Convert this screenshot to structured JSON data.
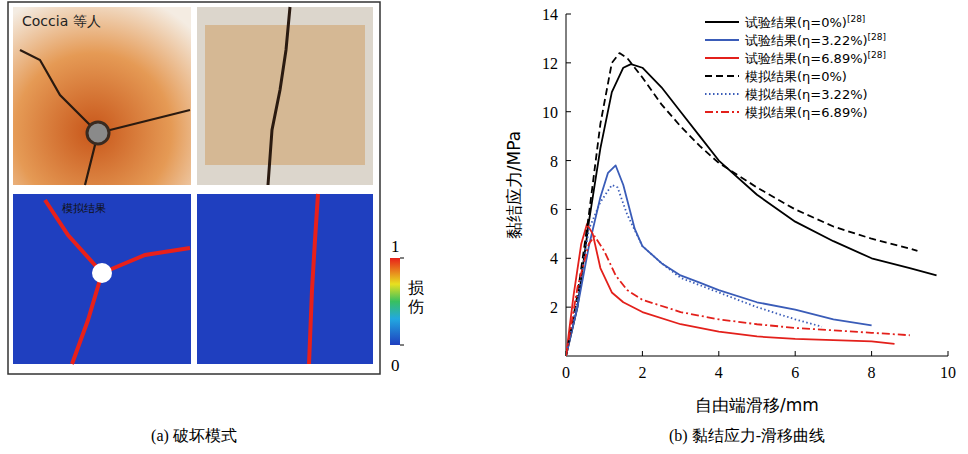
{
  "failure_modes": {
    "caption": "(a) 破坏模式",
    "photo_label": "Coccia 等人",
    "sim_label": "模拟结果",
    "colorbar": {
      "label": "损伤",
      "range": [
        0,
        1
      ],
      "ticks": [
        0,
        1
      ]
    }
  },
  "chart_data": {
    "type": "line",
    "title": "(b) 黏结应力-滑移曲线",
    "x_label": "自由端滑移/mm",
    "y_label": "黏结应力/MPa",
    "xlim": [
      0,
      10
    ],
    "ylim": [
      0,
      14
    ],
    "xticks": [
      0,
      2,
      4,
      6,
      8,
      10
    ],
    "yticks": [
      2,
      4,
      6,
      8,
      10,
      12,
      14
    ],
    "grid": false,
    "legend": "top-right",
    "series": [
      {
        "name": "试验结果(η=0%)[28]",
        "color": "#000000",
        "line_style": "solid",
        "x": [
          0,
          0.3,
          0.6,
          0.9,
          1.2,
          1.5,
          1.7,
          2,
          2.5,
          3,
          3.5,
          4,
          5,
          6,
          7,
          8,
          9,
          9.7
        ],
        "values": [
          0,
          2,
          5.5,
          8.5,
          10.8,
          11.8,
          11.95,
          11.8,
          11,
          10,
          9,
          8,
          6.6,
          5.5,
          4.7,
          4,
          3.6,
          3.3
        ]
      },
      {
        "name": "试验结果(η=3.22%)[28]",
        "color": "#3a5cb8",
        "line_style": "solid",
        "x": [
          0,
          0.3,
          0.6,
          0.9,
          1.1,
          1.3,
          1.5,
          1.8,
          2,
          2.5,
          3,
          3.5,
          4,
          5,
          6,
          7,
          8
        ],
        "values": [
          0,
          2,
          4.5,
          6.5,
          7.5,
          7.8,
          7,
          5.2,
          4.5,
          3.8,
          3.3,
          3,
          2.7,
          2.2,
          1.9,
          1.5,
          1.25
        ]
      },
      {
        "name": "试验结果(η=6.89%)[28]",
        "color": "#e3201b",
        "line_style": "solid",
        "x": [
          0,
          0.2,
          0.4,
          0.55,
          0.7,
          0.9,
          1.2,
          1.5,
          2,
          3,
          4,
          5,
          6,
          7,
          8,
          8.6
        ],
        "values": [
          0,
          2.5,
          4.6,
          5.4,
          5,
          3.6,
          2.6,
          2.2,
          1.8,
          1.3,
          1,
          0.8,
          0.7,
          0.65,
          0.6,
          0.5
        ]
      },
      {
        "name": "模拟结果(η=0%)",
        "color": "#000000",
        "line_style": "dashed",
        "x": [
          0,
          0.3,
          0.6,
          0.9,
          1.2,
          1.4,
          1.6,
          2,
          2.5,
          3,
          3.5,
          4,
          5,
          6,
          7,
          8,
          9,
          9.2
        ],
        "values": [
          0,
          2.5,
          5.8,
          9.5,
          12,
          12.4,
          12.2,
          11.4,
          10.3,
          9.4,
          8.6,
          7.9,
          6.9,
          6,
          5.3,
          4.8,
          4.4,
          4.3
        ]
      },
      {
        "name": "模拟结果(η=3.22%)",
        "color": "#3a5cb8",
        "line_style": "dotted",
        "x": [
          0,
          0.3,
          0.6,
          0.9,
          1.2,
          1.35,
          1.6,
          2,
          2.5,
          3,
          3.5,
          4,
          5,
          6,
          6.7
        ],
        "values": [
          0,
          2.3,
          5.2,
          6.3,
          7,
          6.9,
          5.8,
          4.5,
          3.8,
          3.2,
          2.9,
          2.6,
          2,
          1.5,
          1.2
        ]
      },
      {
        "name": "模拟结果(η=6.89%)",
        "color": "#e3201b",
        "line_style": "dashdot",
        "x": [
          0,
          0.3,
          0.6,
          0.75,
          1,
          1.3,
          1.6,
          2,
          3,
          4,
          5,
          6,
          7,
          8,
          9
        ],
        "values": [
          0,
          2.8,
          4.6,
          4.9,
          4.3,
          3.3,
          2.7,
          2.3,
          1.8,
          1.5,
          1.3,
          1.15,
          1.05,
          0.95,
          0.85
        ]
      }
    ]
  }
}
